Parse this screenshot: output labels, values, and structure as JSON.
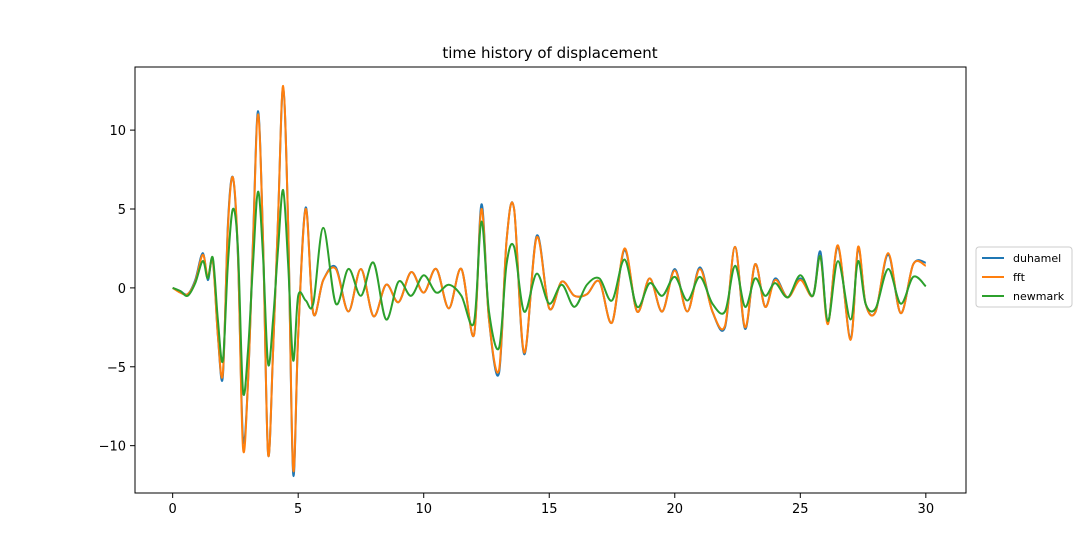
{
  "chart_data": {
    "type": "line",
    "title": "time history of displacement",
    "xlabel": "",
    "ylabel": "",
    "xlim": [
      -1.5,
      31.6
    ],
    "ylim": [
      -13.0,
      14.0
    ],
    "xticks": [
      0,
      5,
      10,
      15,
      20,
      25,
      30
    ],
    "yticks": [
      -10,
      -5,
      0,
      5,
      10
    ],
    "grid": false,
    "legend_position": "right-outside",
    "series": [
      {
        "name": "duhamel",
        "color": "#1f77b4",
        "x": [
          0,
          0.3,
          0.6,
          0.9,
          1.2,
          1.4,
          1.6,
          1.8,
          2.0,
          2.2,
          2.4,
          2.6,
          2.8,
          3.0,
          3.2,
          3.4,
          3.6,
          3.8,
          4.0,
          4.2,
          4.4,
          4.6,
          4.8,
          5.0,
          5.3,
          5.6,
          6.0,
          6.5,
          7.0,
          7.5,
          8.0,
          8.5,
          9.0,
          9.5,
          10.0,
          10.5,
          11.0,
          11.5,
          12.0,
          12.3,
          12.6,
          13.0,
          13.3,
          13.6,
          14.0,
          14.5,
          15.0,
          15.5,
          16.0,
          16.5,
          17.0,
          17.5,
          18.0,
          18.5,
          19.0,
          19.5,
          20.0,
          20.5,
          21.0,
          21.5,
          22.0,
          22.4,
          22.8,
          23.2,
          23.6,
          24.0,
          24.5,
          25.0,
          25.5,
          25.8,
          26.1,
          26.5,
          27.0,
          27.3,
          27.6,
          28.0,
          28.5,
          29.0,
          29.5,
          30.0
        ],
        "y": [
          0,
          -0.2,
          -0.4,
          0.5,
          2.2,
          0.5,
          1.8,
          -3.0,
          -5.6,
          4.0,
          7.0,
          2.0,
          -9.5,
          -6.0,
          3.0,
          11.2,
          3.0,
          -10.5,
          -4.0,
          4.5,
          12.7,
          4.0,
          -11.8,
          -3.0,
          5.1,
          -1.6,
          0.5,
          1.3,
          -1.5,
          1.2,
          -1.8,
          0.2,
          -0.9,
          1.0,
          -0.3,
          1.2,
          -1.3,
          1.2,
          -3.0,
          5.3,
          -2.0,
          -5.4,
          3.0,
          5.0,
          -4.2,
          3.3,
          -1.3,
          0.4,
          -0.5,
          -0.4,
          0.4,
          -2.2,
          2.4,
          -1.5,
          0.6,
          -1.5,
          1.2,
          -1.5,
          1.3,
          -1.5,
          -2.5,
          2.6,
          -2.6,
          1.5,
          -1.2,
          0.6,
          -0.6,
          0.6,
          -0.5,
          2.3,
          -2.2,
          2.6,
          -3.2,
          2.5,
          -1.0,
          -1.5,
          2.1,
          -1.6,
          1.5,
          1.6
        ]
      },
      {
        "name": "fft",
        "color": "#ff7f0e",
        "x": [
          0,
          0.3,
          0.6,
          0.9,
          1.2,
          1.4,
          1.6,
          1.8,
          2.0,
          2.2,
          2.4,
          2.6,
          2.8,
          3.0,
          3.2,
          3.4,
          3.6,
          3.8,
          4.0,
          4.2,
          4.4,
          4.6,
          4.8,
          5.0,
          5.3,
          5.6,
          6.0,
          6.5,
          7.0,
          7.5,
          8.0,
          8.5,
          9.0,
          9.5,
          10.0,
          10.5,
          11.0,
          11.5,
          12.0,
          12.3,
          12.6,
          13.0,
          13.3,
          13.6,
          14.0,
          14.5,
          15.0,
          15.5,
          16.0,
          16.5,
          17.0,
          17.5,
          18.0,
          18.5,
          19.0,
          19.5,
          20.0,
          20.5,
          21.0,
          21.5,
          22.0,
          22.4,
          22.8,
          23.2,
          23.6,
          24.0,
          24.5,
          25.0,
          25.5,
          25.8,
          26.1,
          26.5,
          27.0,
          27.3,
          27.6,
          28.0,
          28.5,
          29.0,
          29.5,
          30.0
        ],
        "y": [
          0,
          -0.3,
          -0.4,
          0.4,
          2.1,
          0.7,
          1.7,
          -3.0,
          -5.4,
          3.8,
          7.0,
          2.2,
          -10.1,
          -6.0,
          2.8,
          11.0,
          3.0,
          -10.5,
          -4.0,
          4.5,
          12.8,
          4.0,
          -11.5,
          -3.0,
          5.0,
          -1.6,
          0.5,
          1.2,
          -1.5,
          1.2,
          -1.8,
          0.2,
          -0.9,
          1.0,
          -0.3,
          1.2,
          -1.3,
          1.2,
          -3.0,
          5.0,
          -2.0,
          -5.2,
          3.0,
          5.0,
          -4.1,
          3.2,
          -1.3,
          0.4,
          -0.5,
          -0.4,
          0.4,
          -2.2,
          2.5,
          -1.5,
          0.6,
          -1.5,
          1.1,
          -1.5,
          1.2,
          -1.5,
          -2.4,
          2.6,
          -2.5,
          1.5,
          -1.2,
          0.5,
          -0.6,
          0.5,
          -0.5,
          2.0,
          -2.3,
          2.7,
          -3.3,
          2.6,
          -1.0,
          -1.5,
          2.2,
          -1.6,
          1.5,
          1.4
        ]
      },
      {
        "name": "newmark",
        "color": "#2ca02c",
        "x": [
          0,
          0.3,
          0.6,
          0.9,
          1.2,
          1.4,
          1.6,
          1.8,
          2.0,
          2.2,
          2.4,
          2.6,
          2.8,
          3.0,
          3.2,
          3.4,
          3.6,
          3.8,
          4.0,
          4.2,
          4.4,
          4.6,
          4.8,
          5.0,
          5.3,
          5.6,
          6.0,
          6.5,
          7.0,
          7.5,
          8.0,
          8.5,
          9.0,
          9.5,
          10.0,
          10.5,
          11.0,
          11.5,
          12.0,
          12.3,
          12.6,
          13.0,
          13.3,
          13.6,
          14.0,
          14.5,
          15.0,
          15.5,
          16.0,
          16.5,
          17.0,
          17.5,
          18.0,
          18.5,
          19.0,
          19.5,
          20.0,
          20.5,
          21.0,
          21.5,
          22.0,
          22.4,
          22.8,
          23.2,
          23.6,
          24.0,
          24.5,
          25.0,
          25.5,
          25.8,
          26.1,
          26.5,
          27.0,
          27.3,
          27.6,
          28.0,
          28.5,
          29.0,
          29.5,
          30.0
        ],
        "y": [
          0,
          -0.2,
          -0.5,
          0.3,
          1.7,
          0.6,
          1.9,
          -2.0,
          -4.6,
          1.5,
          5.0,
          2.5,
          -6.5,
          -4.0,
          1.5,
          6.1,
          2.0,
          -4.8,
          -2.0,
          2.5,
          6.2,
          1.5,
          -4.6,
          -0.5,
          -0.8,
          -1.0,
          3.8,
          -1.0,
          1.2,
          -0.5,
          1.6,
          -2.0,
          0.4,
          -0.5,
          0.8,
          -0.3,
          0.2,
          -0.5,
          -2.2,
          4.2,
          -1.5,
          -3.8,
          1.5,
          2.6,
          -1.5,
          0.9,
          -1.0,
          0.2,
          -1.2,
          0.2,
          0.6,
          -0.8,
          1.8,
          -1.2,
          0.3,
          -0.5,
          0.7,
          -0.8,
          0.7,
          -1.0,
          -1.5,
          1.4,
          -1.2,
          0.6,
          -0.5,
          0.3,
          -0.6,
          0.8,
          -0.5,
          2.0,
          -2.1,
          1.7,
          -2.0,
          1.7,
          -1.0,
          -1.3,
          1.2,
          -1.0,
          0.7,
          0.1
        ]
      }
    ]
  }
}
